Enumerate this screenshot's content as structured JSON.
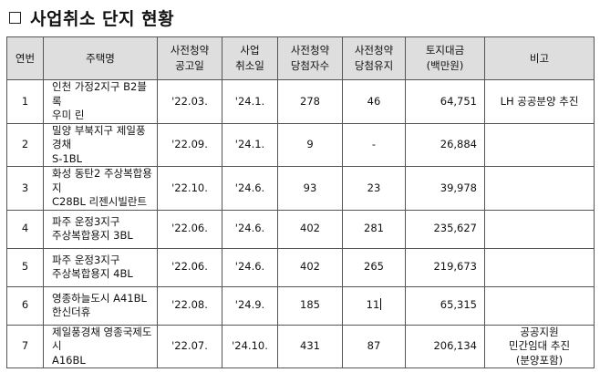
{
  "title": "사업취소 단지 현황",
  "columns": [
    "연번",
    "주택명",
    "사전청약\n공고일",
    "사업\n취소일",
    "사전청약\n당첨자수",
    "사전청약\n당첨유지",
    "토지대금\n(백만원)",
    "비고"
  ],
  "rows": [
    {
      "no": "1",
      "name": "인천 가정2지구 B2블록\n우미 린",
      "announce": "'22.03.",
      "cancel": "'24.1.",
      "winners": "278",
      "kept": "46",
      "land": "64,751",
      "note": "LH 공공분양 추진"
    },
    {
      "no": "2",
      "name": "밀양 부북지구 제일풍경채\nS-1BL",
      "announce": "'22.09.",
      "cancel": "'24.1.",
      "winners": "9",
      "kept": "-",
      "land": "26,884",
      "note": ""
    },
    {
      "no": "3",
      "name": "화성 동탄2 주상복합용지\nC28BL 리젠시빌란트",
      "announce": "'22.10.",
      "cancel": "'24.6.",
      "winners": "93",
      "kept": "23",
      "land": "39,978",
      "note": ""
    },
    {
      "no": "4",
      "name": "파주 운정3지구\n주상복합용지 3BL",
      "announce": "'22.06.",
      "cancel": "'24.6.",
      "winners": "402",
      "kept": "281",
      "land": "235,627",
      "note": ""
    },
    {
      "no": "5",
      "name": "파주 운정3지구\n주상복합용지 4BL",
      "announce": "'22.06.",
      "cancel": "'24.6.",
      "winners": "402",
      "kept": "265",
      "land": "219,673",
      "note": ""
    },
    {
      "no": "6",
      "name": "영종하늘도시 A41BL\n한신더휴",
      "announce": "'22.08.",
      "cancel": "'24.9.",
      "winners": "185",
      "kept": "11",
      "land": "65,315",
      "note": ""
    },
    {
      "no": "7",
      "name": "제일풍경채 영종국제도시\nA16BL",
      "announce": "'22.07.",
      "cancel": "'24.10.",
      "winners": "431",
      "kept": "87",
      "land": "206,134",
      "note": "공공지원\n민간임대 추진\n(분양포함)"
    }
  ]
}
